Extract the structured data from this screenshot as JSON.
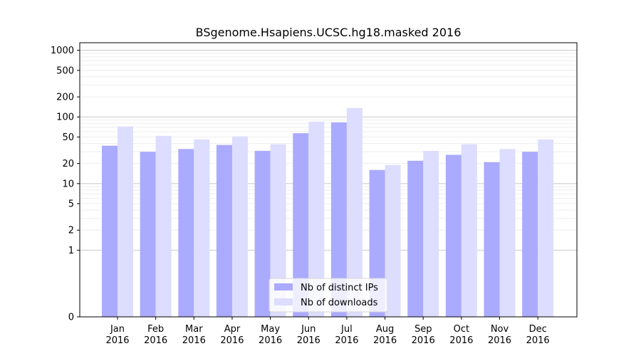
{
  "chart_data": {
    "type": "bar",
    "title": "BSgenome.Hsapiens.UCSC.hg18.masked 2016",
    "xlabel": "",
    "ylabel": "",
    "y_scale": "symlog",
    "grid": true,
    "legend_position": "bottom-center",
    "categories": [
      [
        "Jan",
        "2016"
      ],
      [
        "Feb",
        "2016"
      ],
      [
        "Mar",
        "2016"
      ],
      [
        "Apr",
        "2016"
      ],
      [
        "May",
        "2016"
      ],
      [
        "Jun",
        "2016"
      ],
      [
        "Jul",
        "2016"
      ],
      [
        "Aug",
        "2016"
      ],
      [
        "Sep",
        "2016"
      ],
      [
        "Oct",
        "2016"
      ],
      [
        "Nov",
        "2016"
      ],
      [
        "Dec",
        "2016"
      ]
    ],
    "yticks": [
      {
        "value": 0,
        "label": "0"
      },
      {
        "value": 1,
        "label": "1"
      },
      {
        "value": 2,
        "label": "2"
      },
      {
        "value": 5,
        "label": "5"
      },
      {
        "value": 10,
        "label": "10"
      },
      {
        "value": 20,
        "label": "20"
      },
      {
        "value": 50,
        "label": "50"
      },
      {
        "value": 100,
        "label": "100"
      },
      {
        "value": 200,
        "label": "200"
      },
      {
        "value": 500,
        "label": "500"
      },
      {
        "value": 1000,
        "label": "1000"
      }
    ],
    "series": [
      {
        "name": "Nb of distinct IPs",
        "color": "#aaaaff",
        "values": [
          37,
          30,
          33,
          38,
          31,
          57,
          83,
          16,
          22,
          27,
          21,
          30
        ]
      },
      {
        "name": "Nb of downloads",
        "color": "#ddddff",
        "values": [
          72,
          52,
          46,
          51,
          39,
          85,
          136,
          19,
          31,
          39,
          33,
          46
        ]
      }
    ]
  }
}
